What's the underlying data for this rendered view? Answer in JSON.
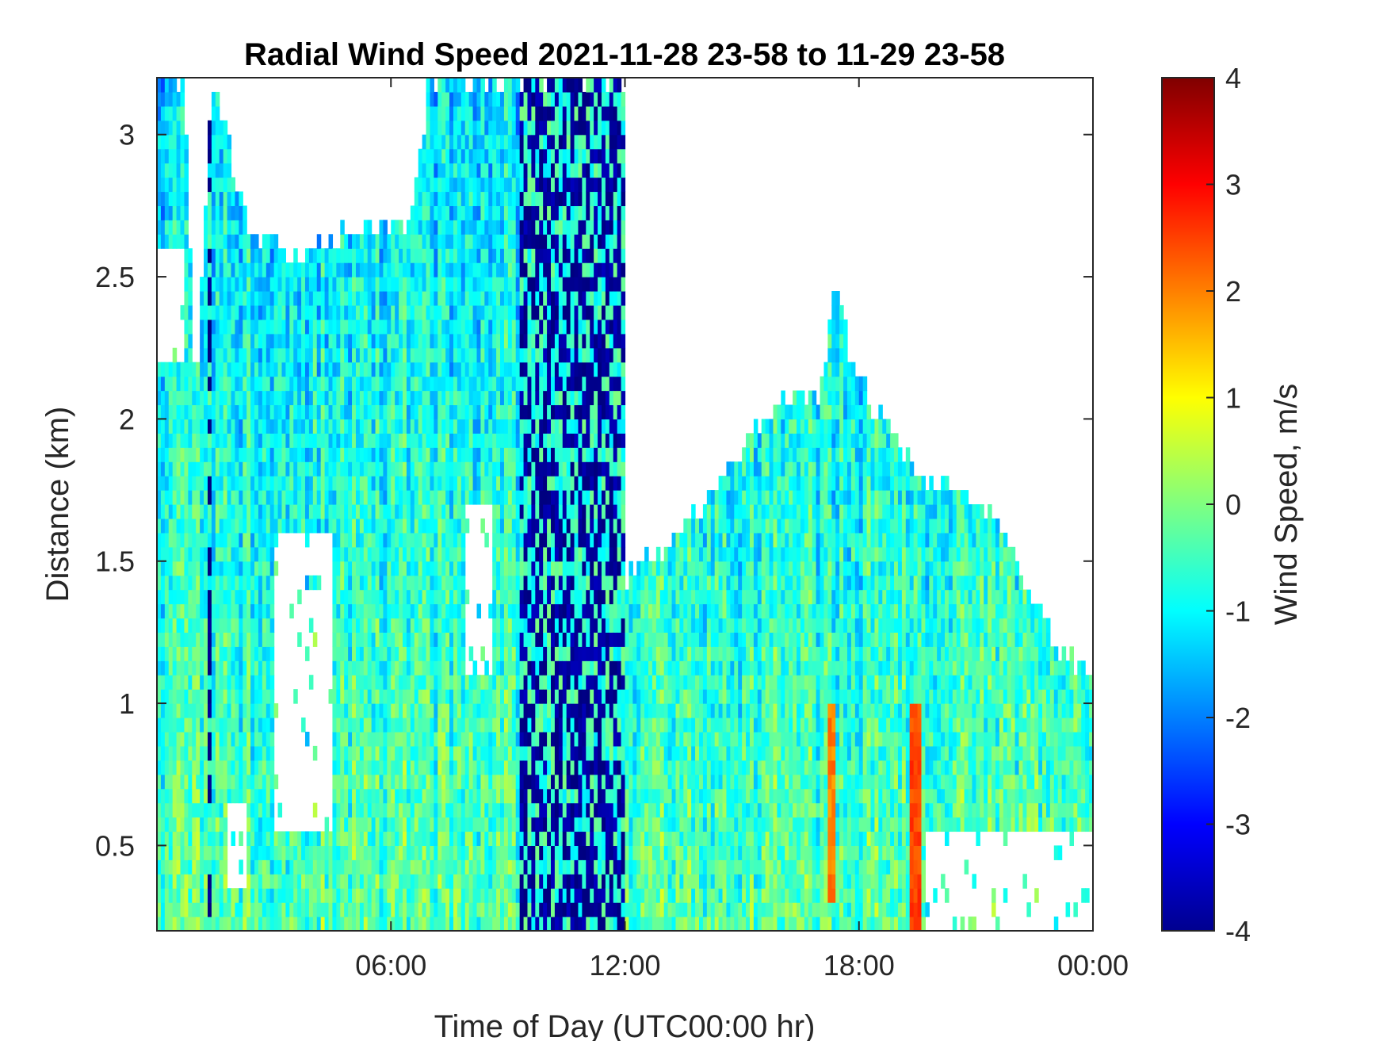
{
  "chart_data": {
    "type": "heatmap",
    "title": "Radial Wind Speed 2021-11-28 23-58 to 11-29 23-58",
    "xlabel": "Time of Day (UTC00:00 hr)",
    "ylabel": "Distance (km)",
    "x_unit": "hours",
    "xlim": [
      0,
      24
    ],
    "ylim": [
      0.2,
      3.2
    ],
    "x_ticks": [
      {
        "value": 6,
        "label": "06:00"
      },
      {
        "value": 12,
        "label": "12:00"
      },
      {
        "value": 18,
        "label": "18:00"
      },
      {
        "value": 24,
        "label": "00:00"
      }
    ],
    "y_ticks": [
      {
        "value": 0.5,
        "label": "0.5"
      },
      {
        "value": 1.0,
        "label": "1"
      },
      {
        "value": 1.5,
        "label": "1.5"
      },
      {
        "value": 2.0,
        "label": "2"
      },
      {
        "value": 2.5,
        "label": "2.5"
      },
      {
        "value": 3.0,
        "label": "3"
      }
    ],
    "colorbar": {
      "label": "Wind Speed, m/s",
      "range": [
        -4,
        4
      ],
      "colormap": "jet",
      "ticks": [
        {
          "value": 4,
          "label": "4"
        },
        {
          "value": 3,
          "label": "3"
        },
        {
          "value": 2,
          "label": "2"
        },
        {
          "value": 1,
          "label": "1"
        },
        {
          "value": 0,
          "label": "0"
        },
        {
          "value": -1,
          "label": "-1"
        },
        {
          "value": -2,
          "label": "-2"
        },
        {
          "value": -3,
          "label": "-3"
        },
        {
          "value": -4,
          "label": "-4"
        }
      ]
    },
    "grid": false,
    "coverage_top_km": [
      {
        "hour": 0.0,
        "top": 3.2
      },
      {
        "hour": 0.7,
        "top": 3.2
      },
      {
        "hour": 1.0,
        "top": 2.0
      },
      {
        "hour": 1.4,
        "top": 3.2
      },
      {
        "hour": 2.4,
        "top": 2.65
      },
      {
        "hour": 3.5,
        "top": 2.6
      },
      {
        "hour": 5.0,
        "top": 2.65
      },
      {
        "hour": 6.5,
        "top": 2.7
      },
      {
        "hour": 7.0,
        "top": 3.2
      },
      {
        "hour": 12.0,
        "top": 3.2
      },
      {
        "hour": 12.05,
        "top": 1.45
      },
      {
        "hour": 13.0,
        "top": 1.55
      },
      {
        "hour": 14.0,
        "top": 1.7
      },
      {
        "hour": 15.0,
        "top": 1.9
      },
      {
        "hour": 16.0,
        "top": 2.05
      },
      {
        "hour": 17.0,
        "top": 2.1
      },
      {
        "hour": 17.4,
        "top": 2.5
      },
      {
        "hour": 17.8,
        "top": 2.2
      },
      {
        "hour": 18.5,
        "top": 2.0
      },
      {
        "hour": 19.5,
        "top": 1.8
      },
      {
        "hour": 20.5,
        "top": 1.75
      },
      {
        "hour": 21.5,
        "top": 1.65
      },
      {
        "hour": 22.0,
        "top": 1.5
      },
      {
        "hour": 23.0,
        "top": 1.2
      },
      {
        "hour": 24.0,
        "top": 1.1
      }
    ],
    "coverage_gaps": [
      {
        "hours": [
          3.0,
          4.5
        ],
        "km": [
          0.55,
          1.6
        ]
      },
      {
        "hours": [
          1.8,
          2.3
        ],
        "km": [
          0.35,
          0.65
        ]
      },
      {
        "hours": [
          7.9,
          8.6
        ],
        "km": [
          1.1,
          1.7
        ]
      },
      {
        "hours": [
          0.0,
          0.7
        ],
        "km": [
          2.2,
          2.6
        ]
      },
      {
        "hours": [
          19.7,
          24.0
        ],
        "km": [
          0.2,
          0.55
        ]
      }
    ],
    "features": [
      {
        "hours": [
          9.3,
          12.0
        ],
        "km": [
          0.2,
          3.2
        ],
        "value": -3.8,
        "note": "dark blue vertical stripes"
      },
      {
        "hours": [
          1.35,
          1.4
        ],
        "km": [
          0.2,
          3.2
        ],
        "value": -4.0
      },
      {
        "hours": [
          19.3,
          19.6
        ],
        "km": [
          0.2,
          1.0
        ],
        "value": 2.5
      },
      {
        "hours": [
          17.2,
          17.4
        ],
        "km": [
          0.3,
          1.0
        ],
        "value": 2.0
      }
    ]
  }
}
